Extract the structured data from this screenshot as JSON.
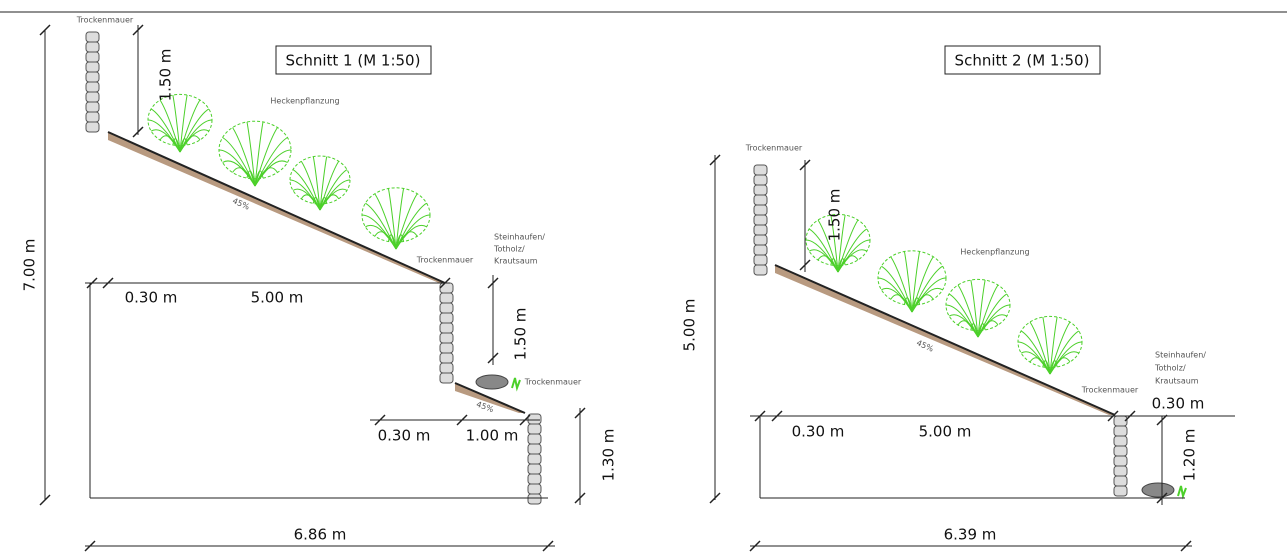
{
  "section_1": {
    "title": "Schnitt 1 (M 1:50)",
    "wall_top_label": "Trockenmauer",
    "height_upper": "1.50 m",
    "hedge_label": "Heckenpflanzung",
    "slope_upper": "45%",
    "wall_mid_label": "Trockenmauer",
    "habitat_label": [
      "Steinhaufen/",
      "Totholz/",
      "Krautsaum"
    ],
    "width_wall_upper": "0.30 m",
    "width_slope_upper": "5.00 m",
    "height_lower": "1.50 m",
    "wall_low_label": "Trockenmauer",
    "slope_lower": "45%",
    "width_wall_lower": "0.30 m",
    "width_slope_lower": "1.00 m",
    "height_wall_low": "1.30 m",
    "total_height": "7.00 m",
    "total_width": "6.86 m"
  },
  "section_2": {
    "title": "Schnitt 2 (M 1:50)",
    "wall_top_label": "Trockenmauer",
    "height_upper": "1.50 m",
    "hedge_label": "Heckenpflanzung",
    "slope": "45%",
    "wall_low_label": "Trockenmauer",
    "habitat_label": [
      "Steinhaufen/",
      "Totholz/",
      "Krautsaum"
    ],
    "width_wall": "0.30 m",
    "width_slope": "5.00 m",
    "width_wall_low": "0.30 m",
    "height_wall_low": "1.20 m",
    "total_height": "5.00 m",
    "total_width": "6.39 m"
  }
}
